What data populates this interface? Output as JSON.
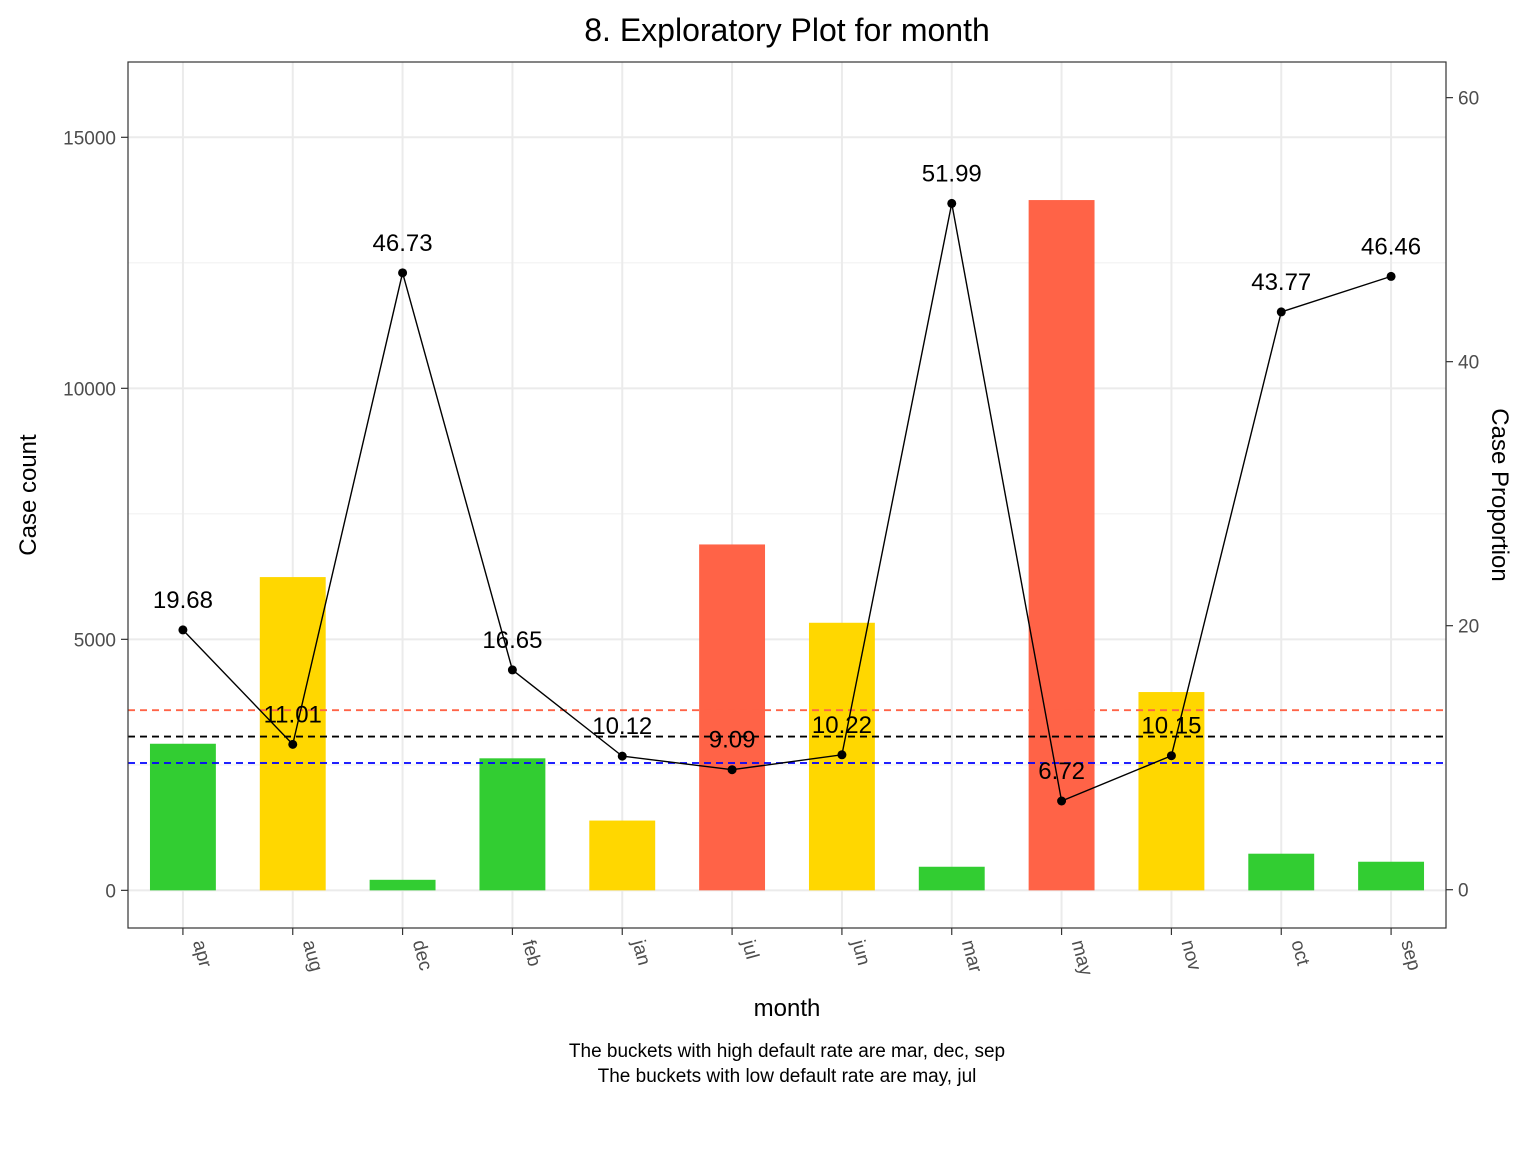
{
  "chart_data": {
    "type": "bar",
    "title": "8. Exploratory Plot for month",
    "xlabel": "month",
    "ylabel": "Case count",
    "y2label": "Case Proportion",
    "categories": [
      "apr",
      "aug",
      "dec",
      "feb",
      "jan",
      "jul",
      "jun",
      "mar",
      "may",
      "nov",
      "oct",
      "sep"
    ],
    "ylim": [
      -750,
      16500
    ],
    "yticks": [
      0,
      5000,
      10000,
      15000
    ],
    "y2lim": [
      -2.9,
      62.7
    ],
    "y2ticks": [
      0,
      20,
      40,
      60
    ],
    "series": [
      {
        "type": "bar",
        "values": [
          2920,
          6240,
          210,
          2630,
          1390,
          6890,
          5330,
          470,
          13750,
          3950,
          730,
          570
        ],
        "colors": [
          "#32CD32",
          "#FFD700",
          "#32CD32",
          "#32CD32",
          "#FFD700",
          "#FF6347",
          "#FFD700",
          "#32CD32",
          "#FF6347",
          "#FFD700",
          "#32CD32",
          "#32CD32"
        ]
      },
      {
        "type": "line",
        "values": [
          19.68,
          11.01,
          46.73,
          16.65,
          10.12,
          9.09,
          10.22,
          51.99,
          6.72,
          10.15,
          43.77,
          46.46
        ],
        "labels": [
          "19.68",
          "11.01",
          "46.73",
          "16.65",
          "10.12",
          "9.09",
          "10.22",
          "51.99",
          "6.72",
          "10.15",
          "43.77",
          "46.46"
        ],
        "color": "#000000"
      }
    ],
    "reference_lines": [
      {
        "value": 13.6,
        "color": "#FF6347",
        "style": "dashed"
      },
      {
        "value": 11.6,
        "color": "#000000",
        "style": "dashed"
      },
      {
        "value": 9.6,
        "color": "#0000FF",
        "style": "dashed"
      }
    ],
    "caption_lines": [
      "The buckets with high default rate are mar, dec, sep",
      "The buckets with low default rate are may, jul"
    ],
    "grid": true
  }
}
